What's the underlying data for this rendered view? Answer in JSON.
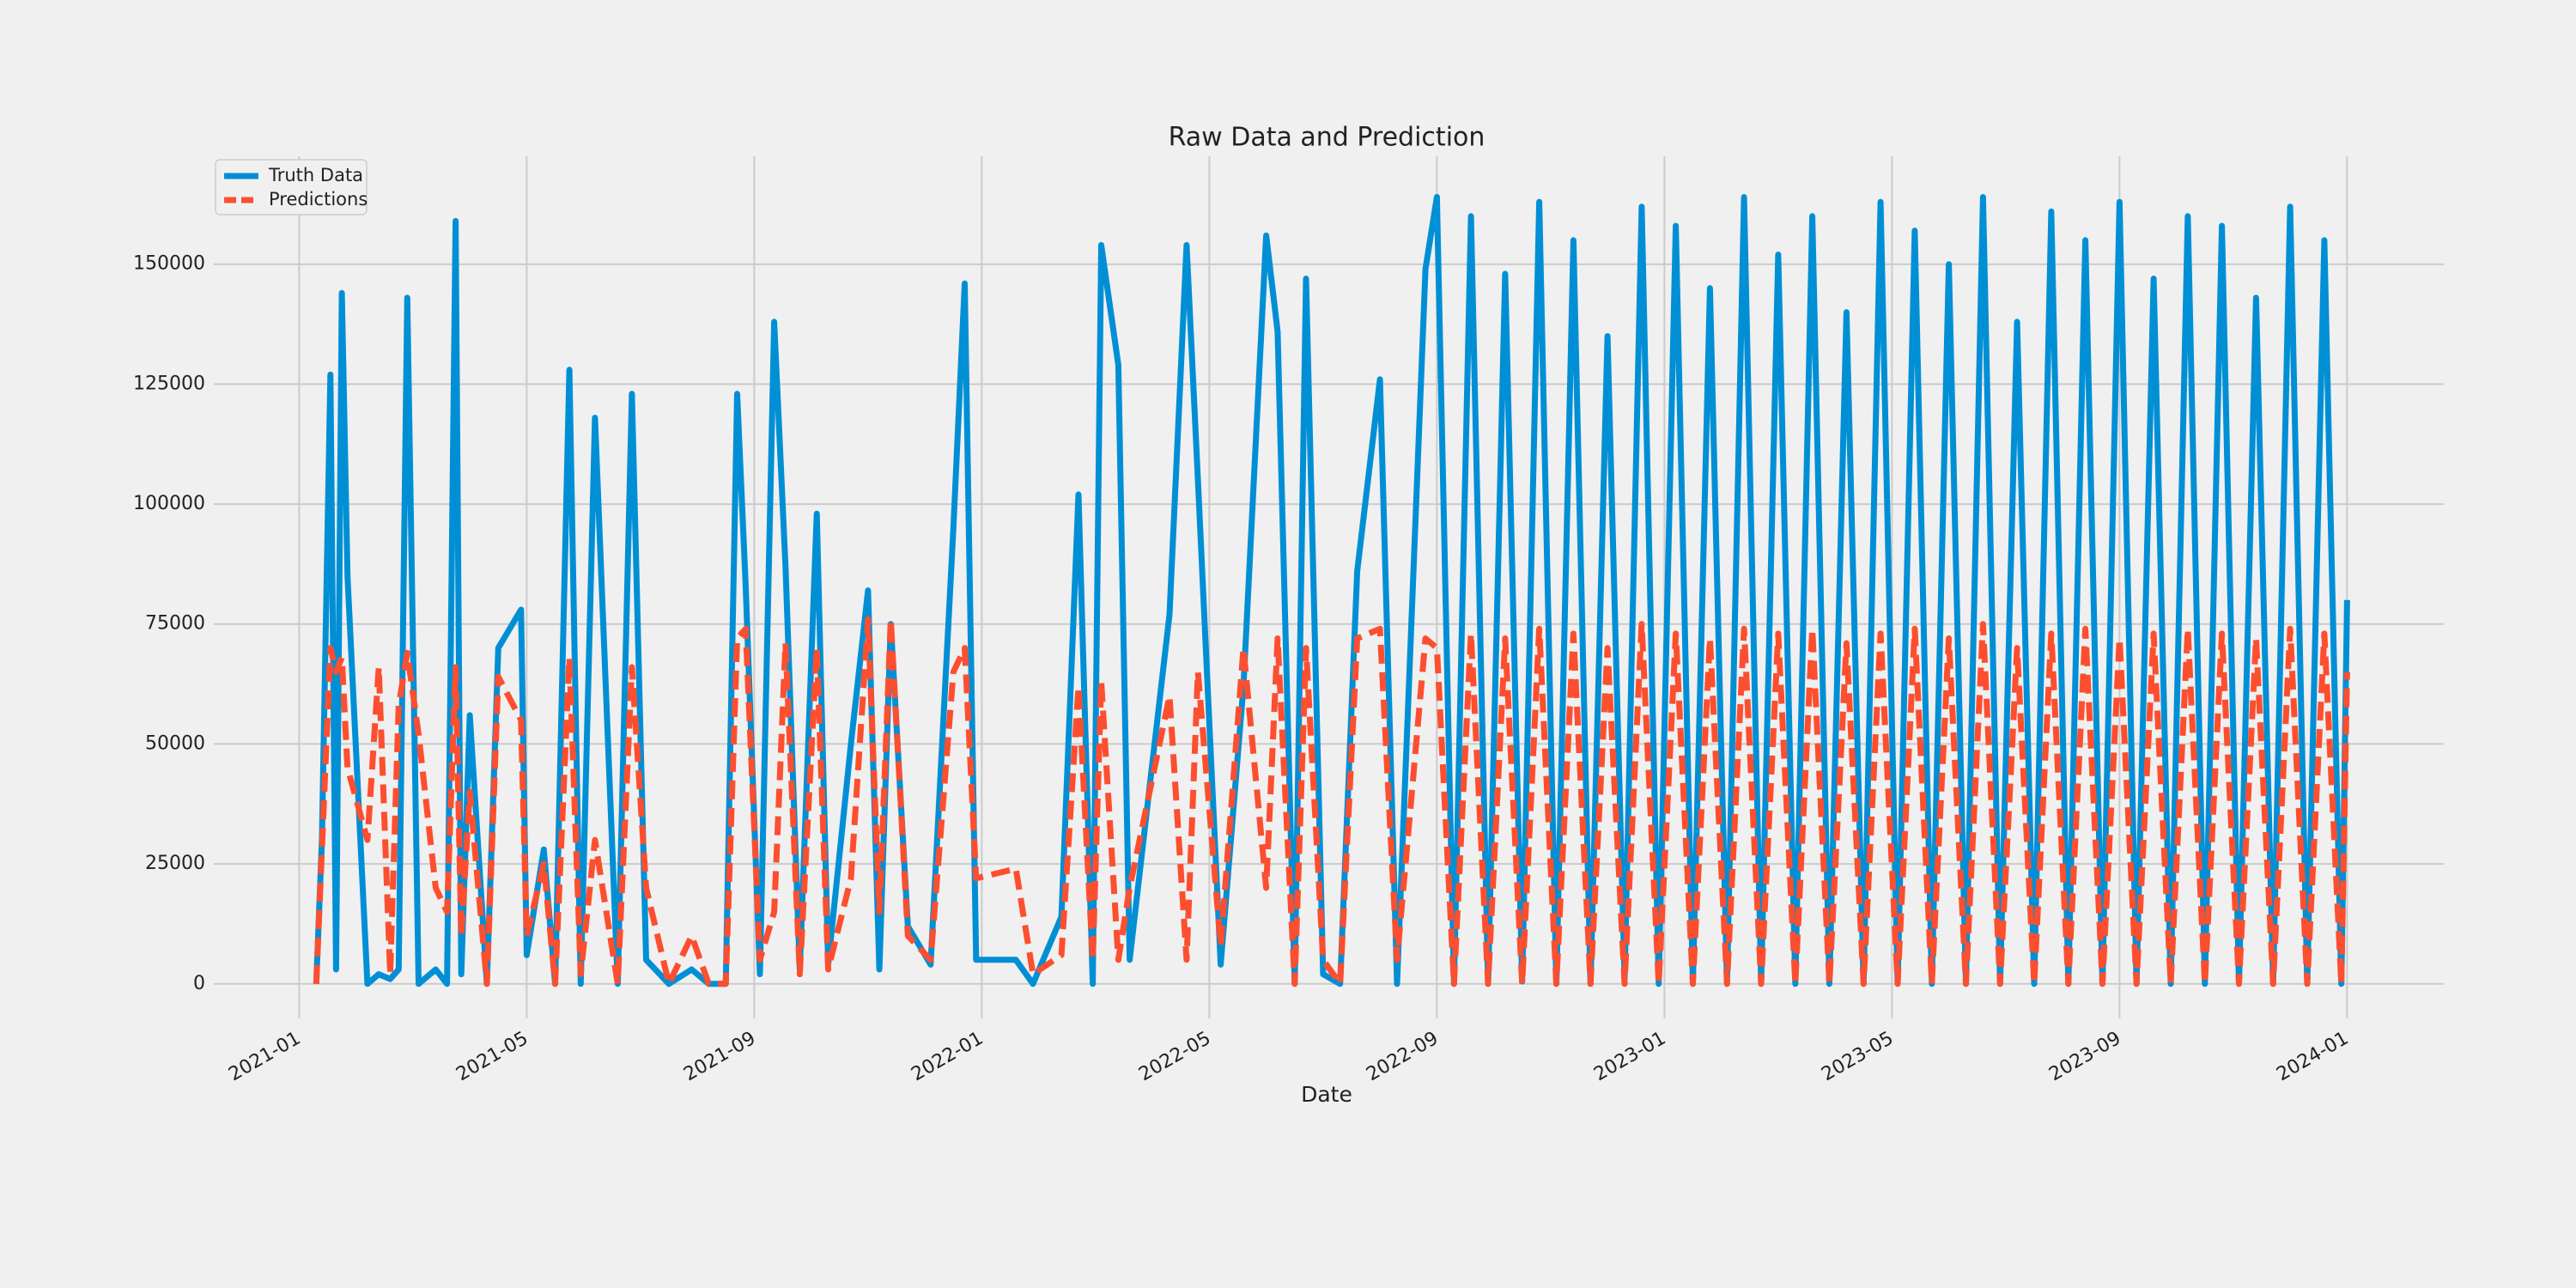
{
  "chart_data": {
    "type": "line",
    "title": "Raw Data and Prediction",
    "xlabel": "Date",
    "x": [
      0.3,
      0.4,
      0.55,
      0.65,
      0.75,
      0.85,
      1.2,
      1.4,
      1.6,
      1.75,
      1.9,
      2.1,
      2.4,
      2.6,
      2.75,
      2.85,
      3.0,
      3.3,
      3.5,
      3.9,
      4.0,
      4.3,
      4.5,
      4.75,
      4.95,
      5.2,
      5.6,
      5.85,
      6.1,
      6.5,
      6.9,
      7.2,
      7.5,
      7.7,
      7.85,
      8.1,
      8.35,
      8.55,
      8.8,
      9.1,
      9.3,
      9.7,
      10.0,
      10.2,
      10.4,
      10.7,
      11.1,
      11.5,
      11.7,
      11.9,
      12.6,
      12.9,
      13.4,
      13.7,
      13.95,
      14.1,
      14.4,
      14.6,
      15.3,
      15.6,
      15.8,
      16.2,
      16.6,
      17.0,
      17.2,
      17.5,
      17.7,
      18.0,
      18.3,
      18.6,
      19.0,
      19.3,
      19.8,
      20.0,
      20.3,
      20.6,
      20.9,
      21.2,
      21.5,
      21.8,
      22.1,
      22.4,
      22.7,
      23.0,
      23.3,
      23.6,
      23.9,
      24.2,
      24.5,
      24.8,
      25.1,
      25.4,
      25.7,
      26.0,
      26.3,
      26.6,
      26.9,
      27.2,
      27.5,
      27.8,
      28.1,
      28.4,
      28.7,
      29.0,
      29.3,
      29.6,
      29.9,
      30.2,
      30.5,
      30.8,
      31.1,
      31.4,
      31.7,
      32.0,
      32.3,
      32.6,
      32.9,
      33.2,
      33.5,
      33.8,
      34.1,
      34.4,
      34.7,
      35.0,
      35.3,
      35.6,
      35.9,
      36.0
    ],
    "series": [
      {
        "name": "Truth Data",
        "color": "#008fd5",
        "dash": false,
        "values": [
          0,
          30000,
          127000,
          3000,
          144000,
          85000,
          0,
          2000,
          1000,
          3000,
          143000,
          0,
          3000,
          0,
          159000,
          2000,
          56000,
          0,
          70000,
          78000,
          6000,
          28000,
          0,
          128000,
          0,
          118000,
          0,
          123000,
          5000,
          0,
          3000,
          0,
          0,
          123000,
          83000,
          2000,
          138000,
          87000,
          3000,
          98000,
          4000,
          50000,
          82000,
          3000,
          75000,
          12000,
          4000,
          95000,
          146000,
          5000,
          5000,
          0,
          14000,
          102000,
          0,
          154000,
          129000,
          5000,
          77000,
          154000,
          105000,
          4000,
          62000,
          156000,
          136000,
          0,
          147000,
          2000,
          0,
          86000,
          126000,
          0,
          149000,
          164000,
          0,
          160000,
          0,
          148000,
          500,
          163000,
          0,
          155000,
          0,
          135000,
          1000,
          162000,
          0,
          158000,
          0,
          145000,
          0,
          164000,
          0,
          152000,
          0,
          160000,
          0,
          140000,
          0,
          163000,
          0,
          157000,
          0,
          150000,
          0,
          164000,
          0,
          138000,
          0,
          161000,
          0,
          155000,
          0,
          163000,
          0,
          147000,
          0,
          160000,
          0,
          158000,
          0,
          143000,
          0,
          162000,
          0,
          155000,
          0,
          80000
        ]
      },
      {
        "name": "Predictions",
        "color": "#fc4f30",
        "dash": true,
        "values": [
          0,
          28000,
          70000,
          65000,
          68000,
          45000,
          30000,
          66000,
          2000,
          58000,
          69000,
          52000,
          20000,
          15000,
          66000,
          10000,
          40000,
          0,
          64000,
          55000,
          10000,
          25000,
          0,
          68000,
          2000,
          30000,
          0,
          66000,
          20000,
          0,
          10000,
          0,
          0,
          72000,
          74000,
          5000,
          15000,
          71000,
          2000,
          70000,
          3000,
          22000,
          76000,
          15000,
          76000,
          10000,
          5000,
          65000,
          70000,
          22000,
          24000,
          2000,
          6000,
          62000,
          5000,
          63000,
          5000,
          20000,
          60000,
          5000,
          65000,
          8000,
          70000,
          20000,
          72000,
          0,
          70000,
          5000,
          0,
          72000,
          74000,
          5000,
          72000,
          70000,
          0,
          73000,
          0,
          72000,
          0,
          74000,
          0,
          73000,
          0,
          70000,
          0,
          75000,
          0,
          73000,
          0,
          72000,
          0,
          74000,
          0,
          73000,
          0,
          74000,
          0,
          71000,
          0,
          73000,
          0,
          74000,
          0,
          72000,
          0,
          75000,
          0,
          70000,
          0,
          73000,
          0,
          74000,
          0,
          72000,
          0,
          73000,
          0,
          74000,
          0,
          73000,
          0,
          72000,
          0,
          74000,
          0,
          73000,
          0,
          65000
        ]
      }
    ],
    "xlim": [
      -1.5,
      37.7
    ],
    "xticks": [
      {
        "value": 0,
        "label": "2021-01"
      },
      {
        "value": 4,
        "label": "2021-05"
      },
      {
        "value": 8,
        "label": "2021-09"
      },
      {
        "value": 12,
        "label": "2022-01"
      },
      {
        "value": 16,
        "label": "2022-05"
      },
      {
        "value": 20,
        "label": "2022-09"
      },
      {
        "value": 24,
        "label": "2023-01"
      },
      {
        "value": 28,
        "label": "2023-05"
      },
      {
        "value": 32,
        "label": "2023-09"
      },
      {
        "value": 36,
        "label": "2024-01"
      }
    ],
    "ylim": [
      -7200,
      172500
    ],
    "yticks": [
      0,
      25000,
      50000,
      75000,
      100000,
      125000,
      150000
    ],
    "grid": true,
    "legend": "upper left"
  }
}
